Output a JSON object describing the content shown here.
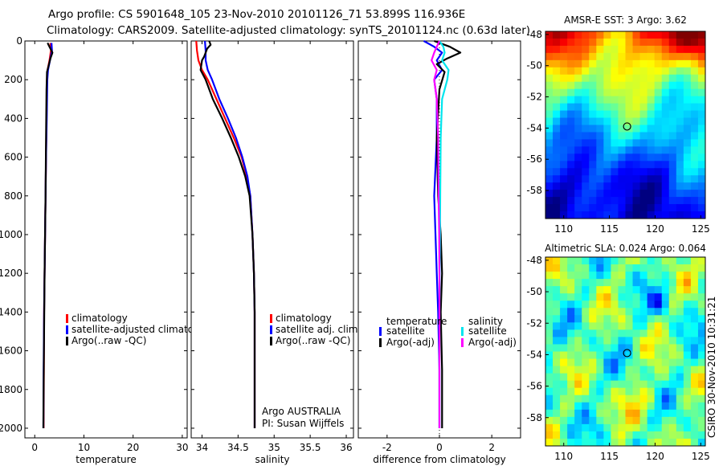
{
  "title_line1": "Argo profile: CS 5901648_105 23-Nov-2010 20101126_71 53.899S 116.936E",
  "title_line2": "Climatology: CARS2009. Satellite-adjusted climatology: synTS_20101124.nc (0.63d later)",
  "side_label": "CSIRO 30-Nov-2010 10:31:21",
  "colors": {
    "climatology": "#ff0000",
    "satellite": "#0000ff",
    "argo": "#000000",
    "sal_satellite": "#00e5ee",
    "sal_argo": "#ff00ff"
  },
  "chart_data": [
    {
      "type": "line",
      "id": "temperature",
      "xlabel": "temperature",
      "xlim": [
        -2,
        31
      ],
      "xticks": [
        0,
        10,
        20,
        30
      ],
      "xtick_labels": [
        "0",
        "10",
        "20",
        "30"
      ],
      "ylim": [
        2050,
        0
      ],
      "yticks": [
        0,
        200,
        400,
        600,
        800,
        1000,
        1200,
        1400,
        1600,
        1800,
        2000
      ],
      "ytick_labels": [
        "0",
        "200",
        "400",
        "600",
        "800",
        "1000",
        "1200",
        "1400",
        "1600",
        "1800",
        "2000"
      ],
      "series": [
        {
          "name": "climatology",
          "color": "climatology",
          "x": [
            3.2,
            3.3,
            3.0,
            2.6,
            2.5,
            2.4,
            2.3,
            2.2,
            2.1,
            2.0,
            1.9,
            1.85,
            1.8
          ],
          "y": [
            10,
            50,
            100,
            150,
            200,
            400,
            600,
            800,
            1000,
            1200,
            1400,
            1700,
            2000
          ]
        },
        {
          "name": "satellite-adjusted climatology",
          "color": "satellite",
          "x": [
            3.4,
            3.5,
            3.1,
            2.7,
            2.55,
            2.45,
            2.3,
            2.2,
            2.1,
            2.0,
            1.9,
            1.8,
            1.75
          ],
          "y": [
            10,
            50,
            100,
            150,
            200,
            400,
            600,
            800,
            1000,
            1200,
            1400,
            1700,
            2000
          ]
        },
        {
          "name": "Argo(..raw -QC)",
          "color": "argo",
          "x": [
            2.6,
            3.0,
            3.6,
            3.2,
            2.9,
            2.5,
            2.4,
            2.3,
            2.2,
            2.1,
            2.0,
            1.9,
            1.8,
            1.75
          ],
          "y": [
            10,
            30,
            60,
            90,
            120,
            160,
            250,
            500,
            800,
            1000,
            1200,
            1500,
            1800,
            2000
          ]
        }
      ],
      "legend": [
        {
          "label": "climatology",
          "color": "climatology"
        },
        {
          "label": "satellite-adjusted climatology",
          "color": "satellite"
        },
        {
          "label": "Argo(..raw -QC)",
          "color": "argo"
        }
      ]
    },
    {
      "type": "line",
      "id": "salinity",
      "xlabel": "salinity",
      "xlim": [
        33.85,
        36.1
      ],
      "xticks": [
        34,
        34.5,
        35,
        35.5,
        36
      ],
      "xtick_labels": [
        "34",
        "34.5",
        "35",
        "35.5",
        "36"
      ],
      "ylim": [
        2050,
        0
      ],
      "series": [
        {
          "name": "climatology",
          "color": "climatology",
          "x": [
            33.92,
            33.93,
            33.95,
            34.0,
            34.08,
            34.2,
            34.32,
            34.44,
            34.55,
            34.62,
            34.67,
            34.7,
            34.72,
            34.73,
            34.73,
            34.73
          ],
          "y": [
            0,
            50,
            100,
            150,
            200,
            300,
            400,
            500,
            600,
            700,
            800,
            1000,
            1200,
            1400,
            1700,
            2000
          ]
        },
        {
          "name": "satellite adj. clim.",
          "color": "satellite",
          "x": [
            34.04,
            34.05,
            34.05,
            34.08,
            34.14,
            34.24,
            34.36,
            34.47,
            34.56,
            34.63,
            34.67,
            34.7,
            34.72,
            34.73,
            34.73,
            34.73
          ],
          "y": [
            0,
            50,
            100,
            150,
            200,
            300,
            400,
            500,
            600,
            700,
            800,
            1000,
            1200,
            1400,
            1700,
            2000
          ]
        },
        {
          "name": "Argo(..raw -QC)",
          "color": "argo",
          "x": [
            34.1,
            34.12,
            34.07,
            34.05,
            34.03,
            34.0,
            33.98,
            34.05,
            34.15,
            34.28,
            34.4,
            34.51,
            34.6,
            34.66,
            34.7,
            34.72,
            34.73,
            34.73,
            34.73
          ],
          "y": [
            0,
            20,
            40,
            60,
            80,
            100,
            150,
            200,
            300,
            400,
            500,
            600,
            700,
            800,
            1000,
            1200,
            1400,
            1700,
            2000
          ]
        }
      ],
      "legend": [
        {
          "label": "climatology",
          "color": "climatology"
        },
        {
          "label": "satellite adj. clim.",
          "color": "satellite"
        },
        {
          "label": "Argo(..raw -QC)",
          "color": "argo"
        }
      ],
      "annotations": [
        "Argo AUSTRALIA",
        "PI: Susan Wijffels"
      ]
    },
    {
      "type": "line",
      "id": "difference",
      "xlabel": "difference from climatology",
      "xlim": [
        -3.1,
        3.1
      ],
      "xticks": [
        -2,
        0,
        2
      ],
      "xtick_labels": [
        "-2",
        "0",
        "2"
      ],
      "ylim": [
        2050,
        0
      ],
      "series": [
        {
          "name": "temperature satellite",
          "color": "satellite",
          "x": [
            -0.6,
            -0.2,
            0.1,
            -0.1,
            0.1,
            -0.2,
            -0.1,
            -0.1,
            -0.2,
            -0.15,
            -0.1,
            -0.05,
            0.0,
            0.0
          ],
          "y": [
            0,
            30,
            60,
            100,
            150,
            200,
            300,
            500,
            800,
            1000,
            1200,
            1400,
            1700,
            2000
          ]
        },
        {
          "name": "temperature Argo(-adj)",
          "color": "argo",
          "x": [
            -0.2,
            0.4,
            0.8,
            0.3,
            -0.1,
            0.2,
            0.0,
            -0.1,
            -0.05,
            0.05,
            0.1,
            0.05,
            0.1,
            0.1
          ],
          "y": [
            0,
            30,
            60,
            90,
            120,
            160,
            250,
            500,
            800,
            1000,
            1200,
            1400,
            1700,
            2000
          ]
        },
        {
          "name": "salinity satellite",
          "color": "sal_satellite",
          "x": [
            0.0,
            0.15,
            0.2,
            0.1,
            0.35,
            0.3,
            0.1,
            0.05,
            0.03,
            0.02,
            0.01,
            0.0,
            0.0,
            0.0
          ],
          "y": [
            0,
            30,
            60,
            100,
            150,
            200,
            300,
            500,
            800,
            1000,
            1200,
            1400,
            1700,
            2000
          ]
        },
        {
          "name": "salinity Argo(-adj)",
          "color": "sal_argo",
          "x": [
            0.0,
            -0.1,
            -0.2,
            -0.3,
            -0.1,
            -0.2,
            -0.1,
            -0.05,
            -0.03,
            -0.01,
            0.0,
            0.0,
            0.0,
            0.0
          ],
          "y": [
            0,
            30,
            60,
            100,
            150,
            200,
            300,
            500,
            800,
            1000,
            1200,
            1400,
            1700,
            2000
          ]
        }
      ],
      "legend_headers": [
        "temperature",
        "salinity"
      ],
      "legend": [
        {
          "label": "satellite",
          "color": "satellite"
        },
        {
          "label": "Argo(-adj)",
          "color": "argo"
        },
        {
          "label": "satellite",
          "color": "sal_satellite"
        },
        {
          "label": "Argo(-adj)",
          "color": "sal_argo"
        }
      ]
    },
    {
      "type": "heatmap",
      "id": "sst_map",
      "title": "AMSR-E SST: 3 Argo: 3.62",
      "xlim": [
        108,
        125.5
      ],
      "ylim": [
        -59.8,
        -47.8
      ],
      "xticks": [
        110,
        115,
        120,
        125
      ],
      "xtick_labels": [
        "110",
        "115",
        "120",
        "125"
      ],
      "yticks": [
        -48,
        -50,
        -52,
        -54,
        -56,
        -58
      ],
      "ytick_labels": [
        "-48",
        "-50",
        "-52",
        "-54",
        "-56",
        "-58"
      ],
      "marker": {
        "lon": 116.936,
        "lat": -53.899
      }
    },
    {
      "type": "heatmap",
      "id": "sla_map",
      "title": "Altimetric SLA: 0.024 Argo: 0.064",
      "xlim": [
        108,
        125.5
      ],
      "ylim": [
        -59.8,
        -47.8
      ],
      "xticks": [
        110,
        115,
        120,
        125
      ],
      "xtick_labels": [
        "110",
        "115",
        "120",
        "125"
      ],
      "yticks": [
        -48,
        -50,
        -52,
        -54,
        -56,
        -58
      ],
      "ytick_labels": [
        "-48",
        "-50",
        "-52",
        "-54",
        "-56",
        "-58"
      ],
      "marker": {
        "lon": 116.936,
        "lat": -53.899
      }
    }
  ]
}
